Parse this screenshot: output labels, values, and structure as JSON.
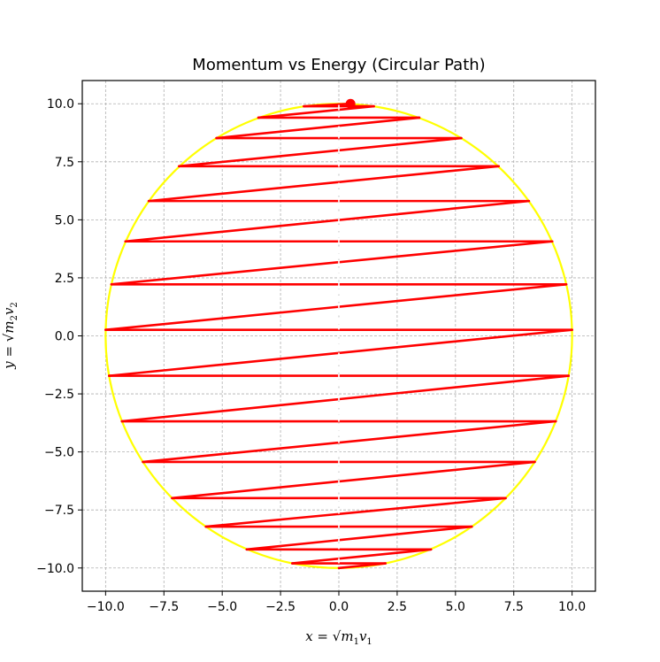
{
  "chart_data": {
    "type": "line",
    "title": "Momentum vs Energy (Circular Path)",
    "xlim": [
      -11.0,
      11.0
    ],
    "ylim": [
      -11.0,
      11.0
    ],
    "xticks": [
      -10.0,
      -7.5,
      -5.0,
      -2.5,
      0.0,
      2.5,
      5.0,
      7.5,
      10.0
    ],
    "yticks": [
      -10.0,
      -7.5,
      -5.0,
      -2.5,
      0.0,
      2.5,
      5.0,
      7.5,
      10.0
    ],
    "xtick_labels": [
      "−10.0",
      "−7.5",
      "−5.0",
      "−2.5",
      "0.0",
      "2.5",
      "5.0",
      "7.5",
      "10.0"
    ],
    "ytick_labels": [
      "−10.0",
      "−7.5",
      "−5.0",
      "−2.5",
      "0.0",
      "2.5",
      "5.0",
      "7.5",
      "10.0"
    ],
    "grid": true,
    "circle": {
      "center": [
        0,
        0
      ],
      "radius": 10,
      "color": "#ffff00"
    },
    "path_color": "#ff0000",
    "path": [
      [
        0.0,
        -10.0
      ],
      [
        2.0,
        -9.8
      ],
      [
        -2.0,
        -9.8
      ],
      [
        3.95,
        -9.2
      ],
      [
        -3.95,
        -9.2
      ],
      [
        5.7,
        -8.22
      ],
      [
        -5.7,
        -8.22
      ],
      [
        7.15,
        -6.99
      ],
      [
        -7.15,
        -6.99
      ],
      [
        8.4,
        -5.43
      ],
      [
        -8.4,
        -5.43
      ],
      [
        9.3,
        -3.68
      ],
      [
        -9.3,
        -3.68
      ],
      [
        9.85,
        -1.72
      ],
      [
        -9.85,
        -1.72
      ],
      [
        10.0,
        0.26
      ],
      [
        -10.0,
        0.26
      ],
      [
        9.75,
        2.22
      ],
      [
        -9.75,
        2.22
      ],
      [
        9.15,
        4.07
      ],
      [
        -9.15,
        4.07
      ],
      [
        8.15,
        5.81
      ],
      [
        -8.15,
        5.81
      ],
      [
        6.85,
        7.31
      ],
      [
        -6.85,
        7.31
      ],
      [
        5.25,
        8.52
      ],
      [
        -5.25,
        8.52
      ],
      [
        3.45,
        9.4
      ],
      [
        -3.45,
        9.4
      ],
      [
        1.5,
        9.89
      ],
      [
        -1.5,
        9.89
      ],
      [
        0.5,
        10.0
      ]
    ],
    "current_point": [
      0.5,
      10.0
    ]
  }
}
